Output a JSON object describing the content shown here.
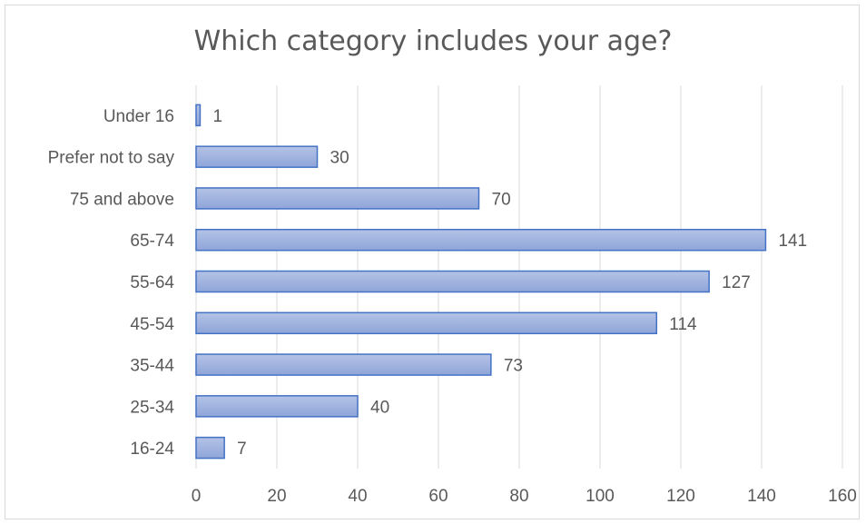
{
  "chart_data": {
    "type": "bar",
    "orientation": "horizontal",
    "title": "Which category includes your age?",
    "xlabel": "",
    "ylabel": "",
    "categories": [
      "Under 16",
      "Prefer not to say",
      "75 and above",
      "65-74",
      "55-64",
      "45-54",
      "35-44",
      "25-34",
      "16-24"
    ],
    "values": [
      1,
      30,
      70,
      141,
      127,
      114,
      73,
      40,
      7
    ],
    "xlim": [
      0,
      160
    ],
    "x_ticks": [
      "0",
      "20",
      "40",
      "60",
      "80",
      "100",
      "120",
      "140",
      "160"
    ],
    "grid": "vertical",
    "legend": "none",
    "data_labels": true,
    "colors": {
      "bar_fill_top": "#b4c3e6",
      "bar_fill_bottom": "#8fa5d9",
      "bar_stroke": "#4472c4",
      "grid": "#d9d9d9",
      "text": "#595959"
    }
  }
}
